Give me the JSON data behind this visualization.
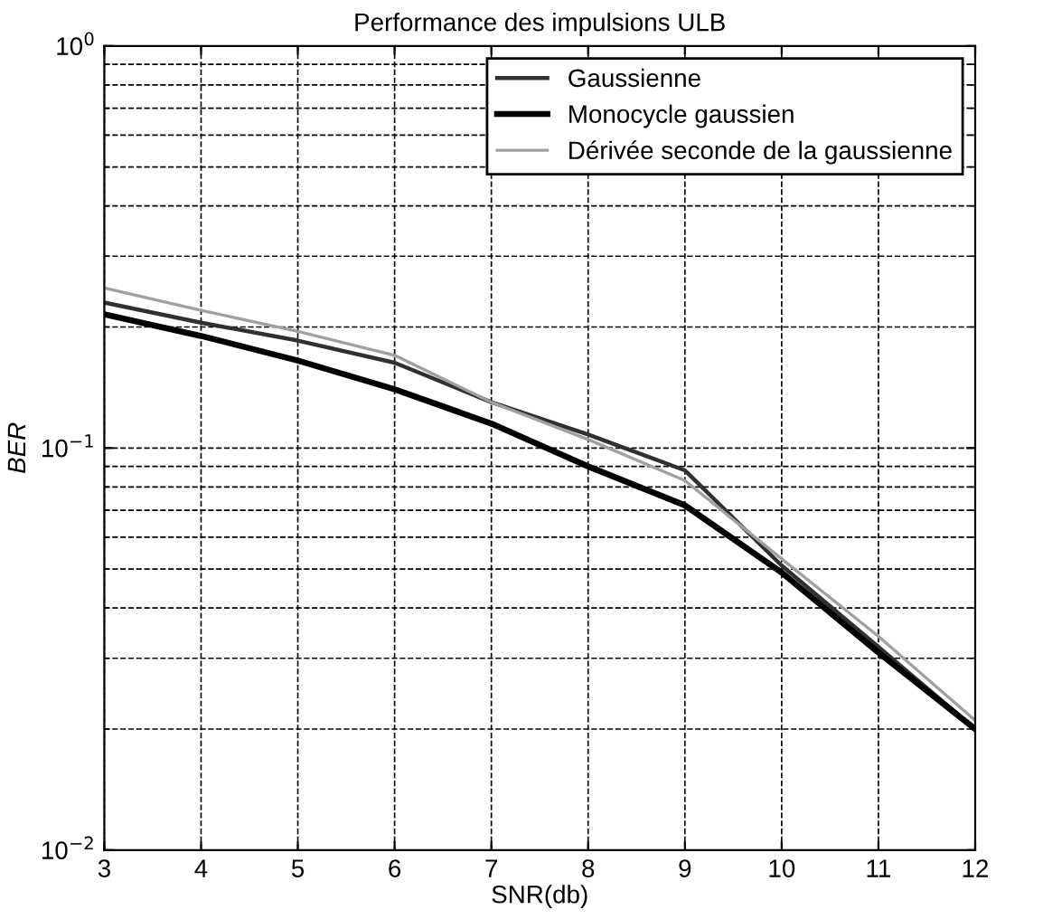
{
  "chart_data": {
    "type": "line",
    "title": "Performance des impulsions ULB",
    "xlabel": "SNR(db)",
    "ylabel": "BER",
    "log": "y",
    "x": [
      3,
      4,
      5,
      6,
      7,
      8,
      9,
      10,
      11,
      12
    ],
    "series": [
      {
        "name": "Gaussienne",
        "color": "#303030",
        "values": [
          0.23,
          0.205,
          0.185,
          0.163,
          0.13,
          0.108,
          0.088,
          0.051,
          0.032,
          0.02
        ]
      },
      {
        "name": "Monocycle gaussien",
        "color": "#000000",
        "values": [
          0.215,
          0.19,
          0.165,
          0.14,
          0.115,
          0.09,
          0.072,
          0.049,
          0.031,
          0.02
        ]
      },
      {
        "name": "Dérivée seconde de la gaussienne",
        "color": "#a0a0a0",
        "values": [
          0.25,
          0.22,
          0.195,
          0.17,
          0.13,
          0.105,
          0.083,
          0.053,
          0.034,
          0.021
        ]
      }
    ],
    "xlim": [
      3,
      12
    ],
    "xticks": [
      3,
      4,
      5,
      6,
      7,
      8,
      9,
      10,
      11,
      12
    ],
    "ylim": [
      0.01,
      1
    ],
    "yticks": [
      {
        "value": 1,
        "label": "10$^{0}$"
      },
      {
        "value": 0.1,
        "label": "10$^{−1}$"
      },
      {
        "value": 0.01,
        "label": "10$^{−2}$"
      }
    ],
    "grid": true,
    "legend": "top right",
    "line_style": "solid",
    "marker": "none"
  }
}
